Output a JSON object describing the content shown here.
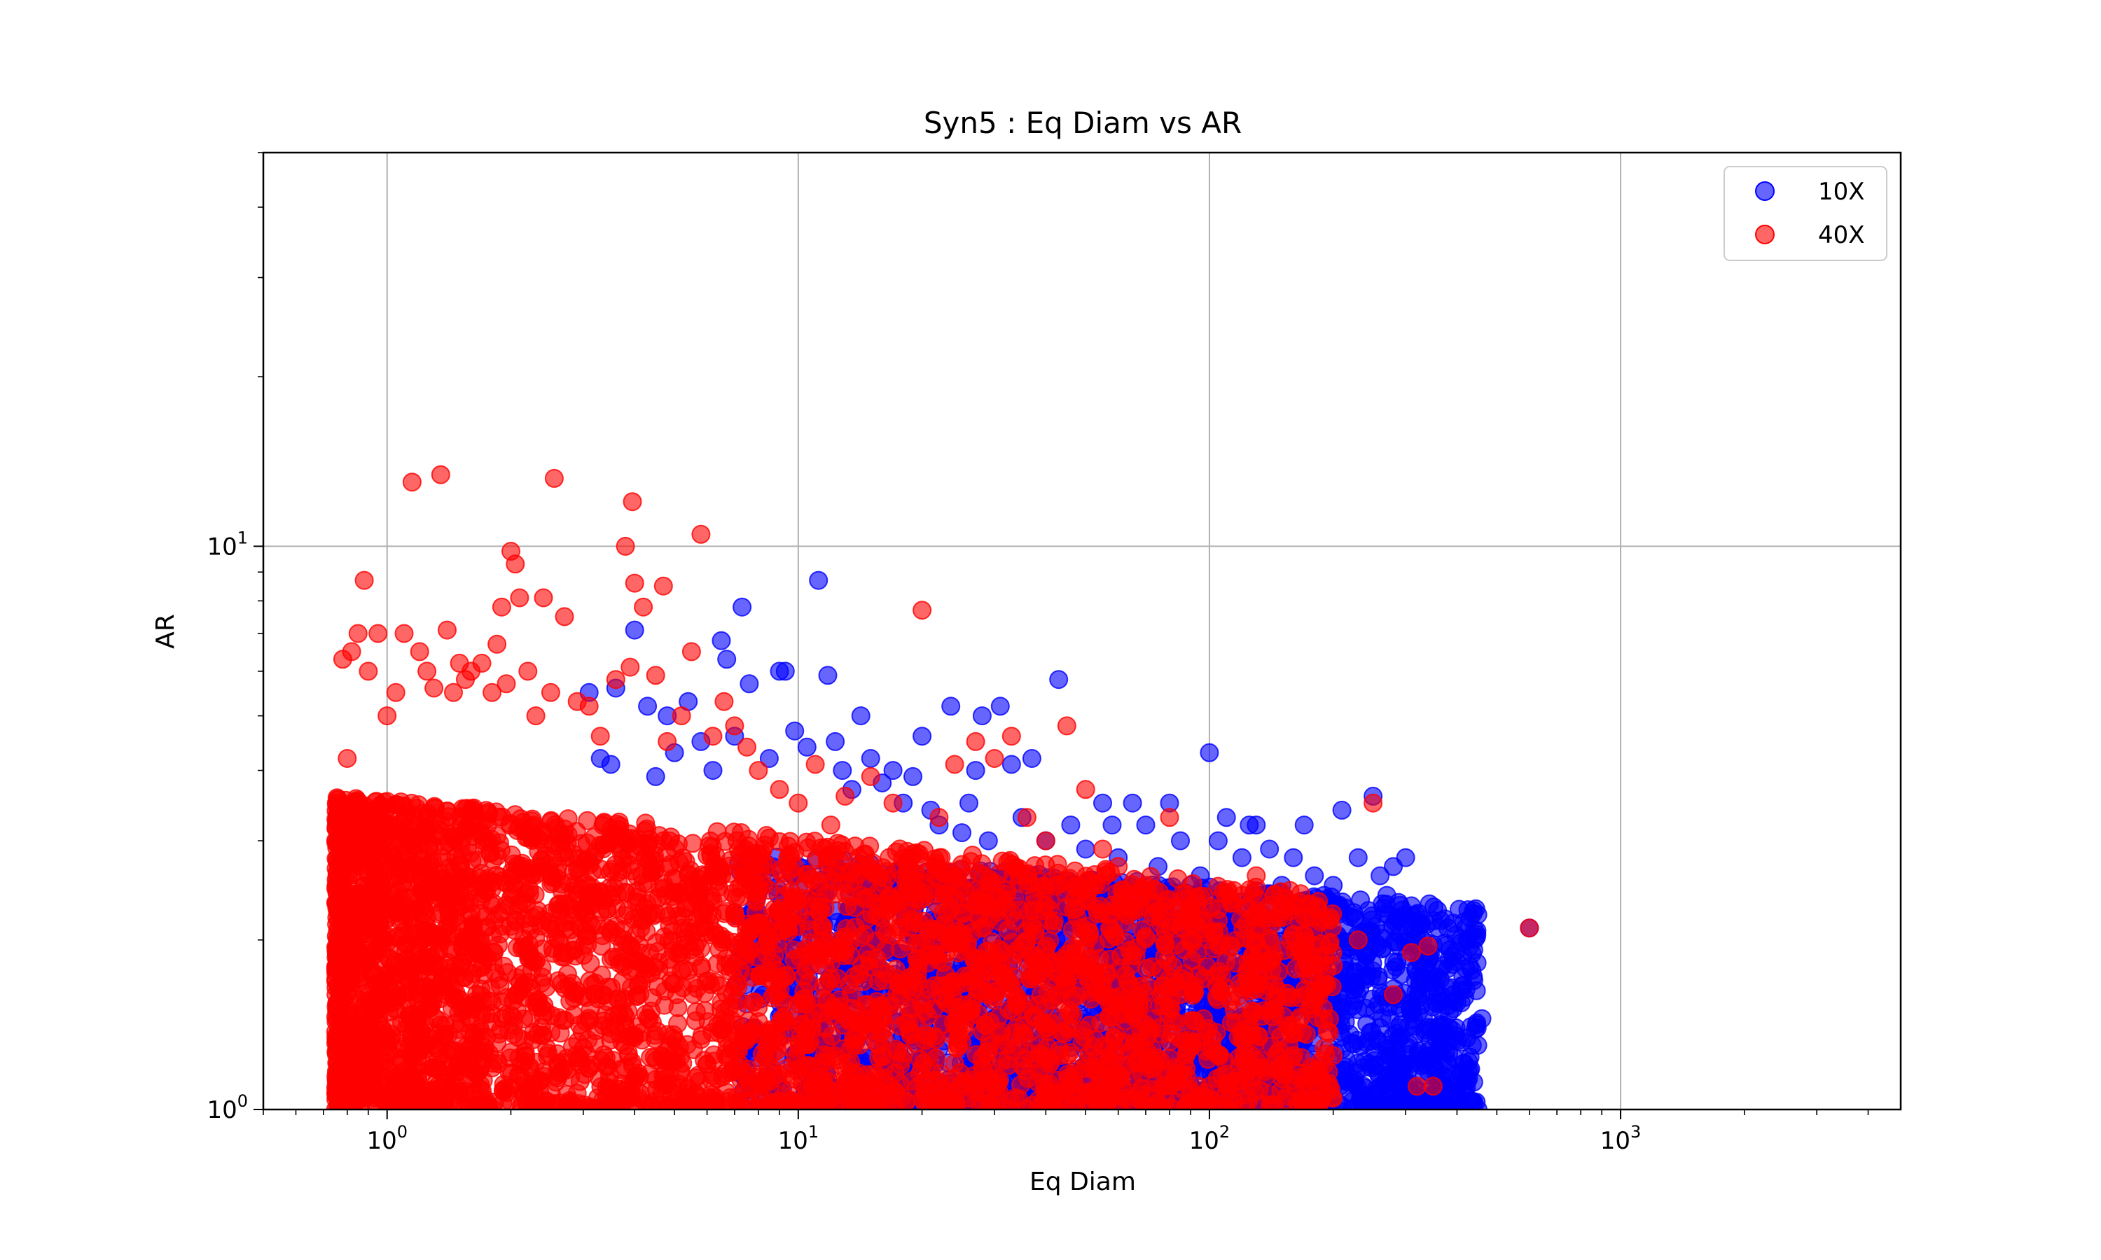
{
  "chart_data": {
    "type": "scatter",
    "title": "Syn5 : Eq Diam vs AR",
    "xlabel": "Eq Diam",
    "ylabel": "AR",
    "xscale": "log",
    "yscale": "log",
    "xlim": [
      0.5,
      4800
    ],
    "ylim": [
      1,
      50
    ],
    "grid": true,
    "legend_position": "top-right",
    "x_ticks": [
      {
        "base": "10",
        "exp": "0",
        "value": 1
      },
      {
        "base": "10",
        "exp": "1",
        "value": 10
      },
      {
        "base": "10",
        "exp": "2",
        "value": 100
      },
      {
        "base": "10",
        "exp": "3",
        "value": 1000
      }
    ],
    "y_ticks": [
      {
        "base": "10",
        "exp": "0",
        "value": 1
      },
      {
        "base": "10",
        "exp": "1",
        "value": 10
      }
    ],
    "series": [
      {
        "name": "10X",
        "color": "#0000ff",
        "points": [
          [
            3.1,
            5.5
          ],
          [
            3.3,
            4.2
          ],
          [
            3.5,
            4.1
          ],
          [
            3.6,
            5.6
          ],
          [
            4.0,
            7.1
          ],
          [
            4.3,
            5.2
          ],
          [
            4.5,
            3.9
          ],
          [
            4.8,
            5.0
          ],
          [
            5.0,
            4.3
          ],
          [
            5.4,
            5.3
          ],
          [
            5.8,
            4.5
          ],
          [
            6.2,
            4.0
          ],
          [
            6.5,
            6.8
          ],
          [
            6.7,
            6.3
          ],
          [
            7.0,
            4.6
          ],
          [
            7.3,
            7.8
          ],
          [
            7.6,
            5.7
          ],
          [
            8.5,
            4.2
          ],
          [
            9.0,
            6.0
          ],
          [
            9.3,
            6.0
          ],
          [
            9.8,
            4.7
          ],
          [
            10.5,
            4.4
          ],
          [
            11.2,
            8.7
          ],
          [
            11.8,
            5.9
          ],
          [
            12.3,
            4.5
          ],
          [
            12.8,
            4.0
          ],
          [
            13.5,
            3.7
          ],
          [
            14.2,
            5.0
          ],
          [
            15.0,
            4.2
          ],
          [
            16.0,
            3.8
          ],
          [
            17.0,
            4.0
          ],
          [
            18.0,
            3.5
          ],
          [
            19.0,
            3.9
          ],
          [
            20.0,
            4.6
          ],
          [
            21.0,
            3.4
          ],
          [
            22.0,
            3.2
          ],
          [
            23.5,
            5.2
          ],
          [
            25.0,
            3.1
          ],
          [
            26.0,
            3.5
          ],
          [
            27.0,
            4.0
          ],
          [
            28.0,
            5.0
          ],
          [
            29.0,
            3.0
          ],
          [
            31.0,
            5.2
          ],
          [
            33.0,
            4.1
          ],
          [
            35.0,
            3.3
          ],
          [
            37.0,
            4.2
          ],
          [
            40.0,
            3.0
          ],
          [
            43.0,
            5.8
          ],
          [
            46.0,
            3.2
          ],
          [
            50.0,
            2.9
          ],
          [
            55.0,
            3.5
          ],
          [
            58.0,
            3.2
          ],
          [
            60.0,
            2.8
          ],
          [
            65.0,
            3.5
          ],
          [
            70.0,
            3.2
          ],
          [
            75.0,
            2.7
          ],
          [
            80.0,
            3.5
          ],
          [
            85.0,
            3.0
          ],
          [
            90.0,
            2.5
          ],
          [
            95.0,
            2.6
          ],
          [
            100.0,
            4.3
          ],
          [
            105.0,
            3.0
          ],
          [
            110.0,
            3.3
          ],
          [
            120.0,
            2.8
          ],
          [
            125.0,
            3.2
          ],
          [
            130.0,
            3.2
          ],
          [
            140.0,
            2.9
          ],
          [
            150.0,
            2.5
          ],
          [
            160.0,
            2.8
          ],
          [
            170.0,
            3.2
          ],
          [
            180.0,
            2.6
          ],
          [
            190.0,
            2.4
          ],
          [
            200.0,
            2.5
          ],
          [
            210.0,
            3.4
          ],
          [
            220.0,
            2.2
          ],
          [
            230.0,
            2.8
          ],
          [
            250.0,
            3.6
          ],
          [
            260.0,
            2.6
          ],
          [
            270.0,
            2.4
          ],
          [
            280.0,
            2.7
          ],
          [
            300.0,
            2.8
          ],
          [
            310.0,
            2.3
          ],
          [
            330.0,
            2.0
          ],
          [
            360.0,
            2.1
          ],
          [
            380.0,
            2.1
          ],
          [
            400.0,
            1.55
          ],
          [
            460.0,
            1.45
          ],
          [
            600.0,
            2.1
          ],
          [
            350.0,
            1.25
          ],
          [
            380.0,
            1.2
          ]
        ],
        "cloud": {
          "x_range": [
            2.5,
            450
          ],
          "ar_range": [
            1.0,
            3.0
          ],
          "count": 2600
        }
      },
      {
        "name": "40X",
        "color": "#ff0000",
        "points": [
          [
            0.78,
            6.3
          ],
          [
            0.8,
            4.2
          ],
          [
            0.82,
            6.5
          ],
          [
            0.85,
            7.0
          ],
          [
            0.88,
            8.7
          ],
          [
            0.9,
            6.0
          ],
          [
            0.95,
            7.0
          ],
          [
            1.0,
            5.0
          ],
          [
            1.05,
            5.5
          ],
          [
            1.1,
            7.0
          ],
          [
            1.15,
            13.0
          ],
          [
            1.2,
            6.5
          ],
          [
            1.25,
            6.0
          ],
          [
            1.3,
            5.6
          ],
          [
            1.35,
            13.4
          ],
          [
            1.4,
            7.1
          ],
          [
            1.45,
            5.5
          ],
          [
            1.5,
            6.2
          ],
          [
            1.55,
            5.8
          ],
          [
            1.6,
            6.0
          ],
          [
            1.7,
            6.2
          ],
          [
            1.8,
            5.5
          ],
          [
            1.85,
            6.7
          ],
          [
            1.9,
            7.8
          ],
          [
            1.95,
            5.7
          ],
          [
            2.0,
            9.8
          ],
          [
            2.05,
            9.3
          ],
          [
            2.1,
            8.1
          ],
          [
            2.2,
            6.0
          ],
          [
            2.3,
            5.0
          ],
          [
            2.4,
            8.1
          ],
          [
            2.5,
            5.5
          ],
          [
            2.55,
            13.2
          ],
          [
            2.7,
            7.5
          ],
          [
            2.9,
            5.3
          ],
          [
            3.1,
            5.2
          ],
          [
            3.3,
            4.6
          ],
          [
            3.6,
            5.8
          ],
          [
            3.8,
            10.0
          ],
          [
            3.9,
            6.1
          ],
          [
            3.95,
            12.0
          ],
          [
            4.0,
            8.6
          ],
          [
            4.2,
            7.8
          ],
          [
            4.5,
            5.9
          ],
          [
            4.7,
            8.5
          ],
          [
            4.8,
            4.5
          ],
          [
            5.2,
            5.0
          ],
          [
            5.5,
            6.5
          ],
          [
            5.8,
            10.5
          ],
          [
            6.2,
            4.6
          ],
          [
            6.6,
            5.3
          ],
          [
            7.0,
            4.8
          ],
          [
            7.5,
            4.4
          ],
          [
            8.0,
            4.0
          ],
          [
            9.0,
            3.7
          ],
          [
            10.0,
            3.5
          ],
          [
            11.0,
            4.1
          ],
          [
            12.0,
            3.2
          ],
          [
            13.0,
            3.6
          ],
          [
            15.0,
            3.9
          ],
          [
            17.0,
            3.5
          ],
          [
            20.0,
            7.7
          ],
          [
            22.0,
            3.3
          ],
          [
            24.0,
            4.1
          ],
          [
            27.0,
            4.5
          ],
          [
            30.0,
            4.2
          ],
          [
            33.0,
            4.6
          ],
          [
            36.0,
            3.3
          ],
          [
            40.0,
            3.0
          ],
          [
            45.0,
            4.8
          ],
          [
            50.0,
            3.7
          ],
          [
            55.0,
            2.9
          ],
          [
            60.0,
            2.7
          ],
          [
            70.0,
            2.5
          ],
          [
            80.0,
            3.3
          ],
          [
            90.0,
            2.2
          ],
          [
            100.0,
            2.0
          ],
          [
            110.0,
            2.4
          ],
          [
            130.0,
            2.6
          ],
          [
            150.0,
            2.3
          ],
          [
            170.0,
            2.2
          ],
          [
            200.0,
            1.8
          ],
          [
            230.0,
            2.0
          ],
          [
            250.0,
            3.5
          ],
          [
            280.0,
            1.6
          ],
          [
            320.0,
            1.1
          ],
          [
            340.0,
            1.95
          ],
          [
            600.0,
            2.1
          ],
          [
            350.0,
            1.1
          ],
          [
            310.0,
            1.9
          ]
        ],
        "cloud": {
          "x_range": [
            0.75,
            200
          ],
          "ar_range": [
            1.0,
            3.6
          ],
          "count": 4200
        }
      }
    ]
  }
}
